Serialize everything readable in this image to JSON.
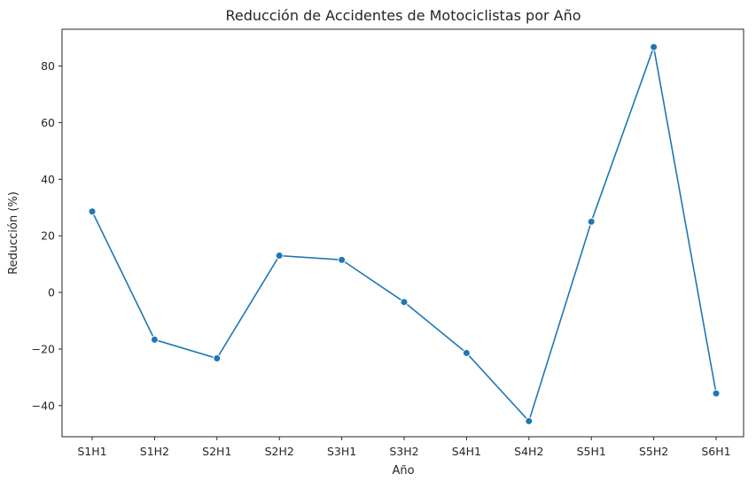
{
  "chart_data": {
    "type": "line",
    "title": "Reducción de Accidentes de Motociclistas por Año",
    "xlabel": "Año",
    "ylabel": "Reducción (%)",
    "categories": [
      "S1H1",
      "S1H2",
      "S2H1",
      "S2H2",
      "S3H1",
      "S3H2",
      "S4H1",
      "S4H2",
      "S5H1",
      "S5H2",
      "S6H1"
    ],
    "series": [
      {
        "values": [
          28.6,
          -16.7,
          -23.3,
          13.0,
          11.5,
          -3.4,
          -21.4,
          -45.5,
          25.0,
          86.7,
          -35.7
        ]
      }
    ],
    "yticks": [
      -40,
      -20,
      0,
      20,
      40,
      60,
      80
    ],
    "ytick_labels": [
      "−40",
      "−20",
      "0",
      "20",
      "40",
      "60",
      "80"
    ],
    "ylim": [
      -51,
      93
    ],
    "grid": false,
    "legend": "none",
    "line_color": "#1f77b4",
    "marker": "circle"
  }
}
